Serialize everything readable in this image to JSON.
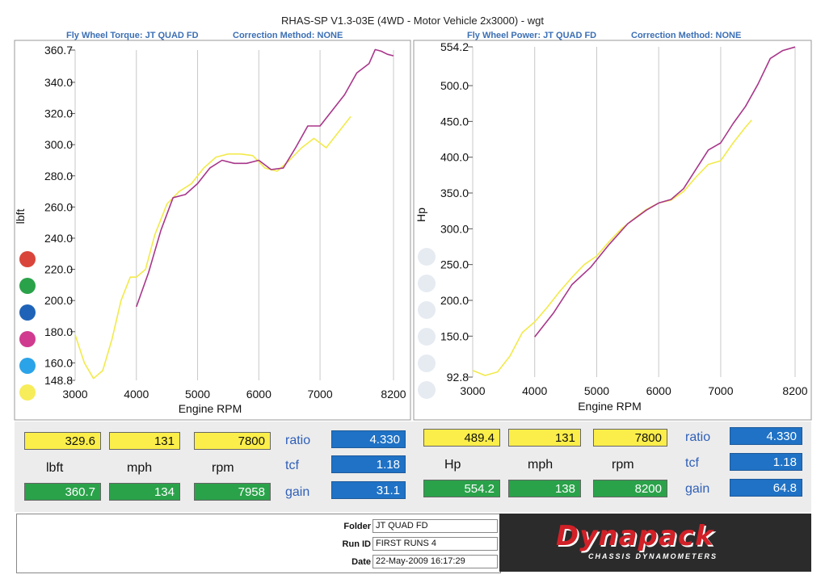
{
  "title": "RHAS-SP V1.3-03E  (4WD - Motor Vehicle 2x3000) - wgt",
  "left_header": {
    "label": "Fly Wheel Torque: JT QUAD FD",
    "correction": "Correction Method: NONE"
  },
  "right_header": {
    "label": "Fly Wheel Power: JT QUAD FD",
    "correction": "Correction Method: NONE"
  },
  "colors": {
    "run1": "#a8368a",
    "run2": "#f2ea4a",
    "header_blue": "#3b6fb5",
    "box_yellow": "#fbee4a",
    "box_green": "#2aa24a",
    "box_blue": "#1f72c5"
  },
  "legend_dots": [
    "#d9453a",
    "#2aa24a",
    "#1f63b8",
    "#d03a8f",
    "#2ba3e8",
    "#f7ec5a"
  ],
  "chart_data": [
    {
      "type": "line",
      "xlabel": "Engine RPM",
      "ylabel": "lbft",
      "xlim": [
        3000,
        8200
      ],
      "ylim": [
        148.8,
        360.7
      ],
      "xticks": [
        "3000",
        "4000",
        "5000",
        "6000",
        "7000",
        "8200"
      ],
      "yticks": [
        "360.7",
        "340.0",
        "320.0",
        "300.0",
        "280.0",
        "260.0",
        "240.0",
        "220.0",
        "200.0",
        "180.0",
        "160.0",
        "148.8"
      ],
      "series": [
        {
          "color": "#a8368a",
          "x": [
            4000,
            4200,
            4400,
            4600,
            4800,
            5000,
            5200,
            5400,
            5600,
            5800,
            6000,
            6200,
            6400,
            6600,
            6800,
            7000,
            7200,
            7400,
            7600,
            7800,
            7900,
            8000,
            8100,
            8200
          ],
          "y": [
            196,
            218,
            245,
            266,
            268,
            275,
            285,
            290,
            288,
            288,
            290,
            284,
            285,
            298,
            312,
            312,
            322,
            332,
            346,
            352,
            361,
            360,
            358,
            357
          ]
        },
        {
          "color": "#f2ea4a",
          "x": [
            3000,
            3150,
            3300,
            3450,
            3600,
            3750,
            3900,
            4000,
            4150,
            4300,
            4500,
            4700,
            4900,
            5100,
            5300,
            5500,
            5700,
            5900,
            6100,
            6300,
            6500,
            6700,
            6900,
            7100,
            7300,
            7500
          ],
          "y": [
            178,
            160,
            150,
            155,
            175,
            200,
            215,
            215,
            220,
            242,
            262,
            270,
            275,
            285,
            292,
            294,
            294,
            293,
            285,
            283,
            290,
            298,
            304,
            298,
            308,
            318
          ]
        }
      ]
    },
    {
      "type": "line",
      "xlabel": "Engine RPM",
      "ylabel": "Hp",
      "xlim": [
        3000,
        8200
      ],
      "ylim": [
        92.8,
        554.2
      ],
      "xticks": [
        "3000",
        "4000",
        "5000",
        "6000",
        "7000",
        "8200"
      ],
      "yticks": [
        "554.2",
        "500.0",
        "450.0",
        "400.0",
        "350.0",
        "300.0",
        "250.0",
        "200.0",
        "150.0",
        "92.8"
      ],
      "series": [
        {
          "color": "#a8368a",
          "x": [
            4000,
            4300,
            4600,
            4900,
            5200,
            5500,
            5800,
            6000,
            6200,
            6400,
            6600,
            6800,
            7000,
            7200,
            7400,
            7600,
            7800,
            8000,
            8200
          ],
          "y": [
            149,
            182,
            222,
            246,
            278,
            307,
            326,
            336,
            341,
            356,
            383,
            410,
            420,
            447,
            471,
            502,
            538,
            549,
            554
          ]
        },
        {
          "color": "#f2ea4a",
          "x": [
            3000,
            3200,
            3400,
            3600,
            3800,
            4000,
            4200,
            4400,
            4600,
            4800,
            5000,
            5200,
            5400,
            5600,
            5800,
            6000,
            6200,
            6400,
            6600,
            6800,
            7000,
            7200,
            7400,
            7500
          ],
          "y": [
            102,
            95,
            100,
            122,
            155,
            170,
            190,
            212,
            232,
            250,
            262,
            282,
            300,
            314,
            327,
            336,
            340,
            352,
            372,
            390,
            395,
            420,
            442,
            452
          ]
        }
      ]
    }
  ],
  "left_table": {
    "row1": [
      "329.6",
      "131",
      "7800"
    ],
    "units": [
      "lbft",
      "mph",
      "rpm"
    ],
    "row3": [
      "360.7",
      "134",
      "7958"
    ],
    "params": [
      {
        "label": "ratio",
        "value": "4.330"
      },
      {
        "label": "tcf",
        "value": "1.18"
      },
      {
        "label": "gain",
        "value": "31.1"
      }
    ]
  },
  "right_table": {
    "row1": [
      "489.4",
      "131",
      "7800"
    ],
    "units": [
      "Hp",
      "mph",
      "rpm"
    ],
    "row3": [
      "554.2",
      "138",
      "8200"
    ],
    "params": [
      {
        "label": "ratio",
        "value": "4.330"
      },
      {
        "label": "tcf",
        "value": "1.18"
      },
      {
        "label": "gain",
        "value": "64.8"
      }
    ]
  },
  "info": {
    "folder_label": "Folder",
    "folder_value": "JT QUAD FD",
    "runid_label": "Run ID",
    "runid_value": "FIRST RUNS  4",
    "date_label": "Date",
    "date_value": "22-May-2009  16:17:29"
  },
  "logo": {
    "name": "Dynapack",
    "sub": "CHASSIS DYNAMOMETERS"
  }
}
